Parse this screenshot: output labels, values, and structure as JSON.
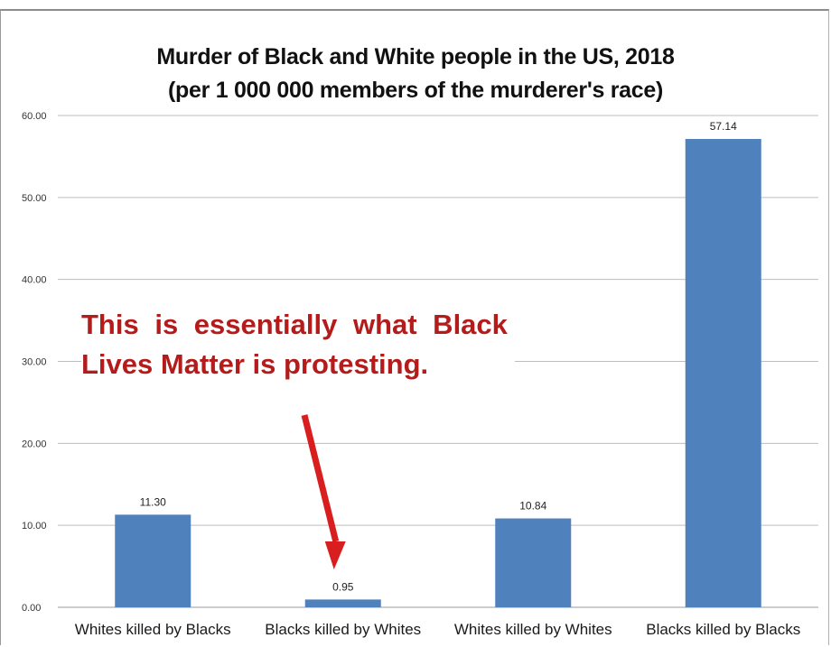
{
  "chart_data": {
    "type": "bar",
    "title": "Murder of Black and White people in the US, 2018",
    "subtitle": "(per 1 000 000 members of the murderer's race)",
    "categories": [
      "Whites killed by Blacks",
      "Blacks killed by Whites",
      "Whites killed by Whites",
      "Blacks killed by Blacks"
    ],
    "values": [
      11.3,
      0.95,
      10.84,
      57.14
    ],
    "data_labels": [
      "11.30",
      "0.95",
      "10.84",
      "57.14"
    ],
    "ylim": [
      0,
      60
    ],
    "yticks": [
      "0.00",
      "10.00",
      "20.00",
      "30.00",
      "40.00",
      "50.00",
      "60.00"
    ],
    "grid": true,
    "legend": "none",
    "bar_color": "#4f81bd",
    "annotation": {
      "line1": "This is essentially what Black",
      "line2": "Lives Matter is protesting.",
      "color": "#b41c1c",
      "arrow_color": "#d81e1e",
      "points_to": "Blacks killed by Whites"
    }
  }
}
